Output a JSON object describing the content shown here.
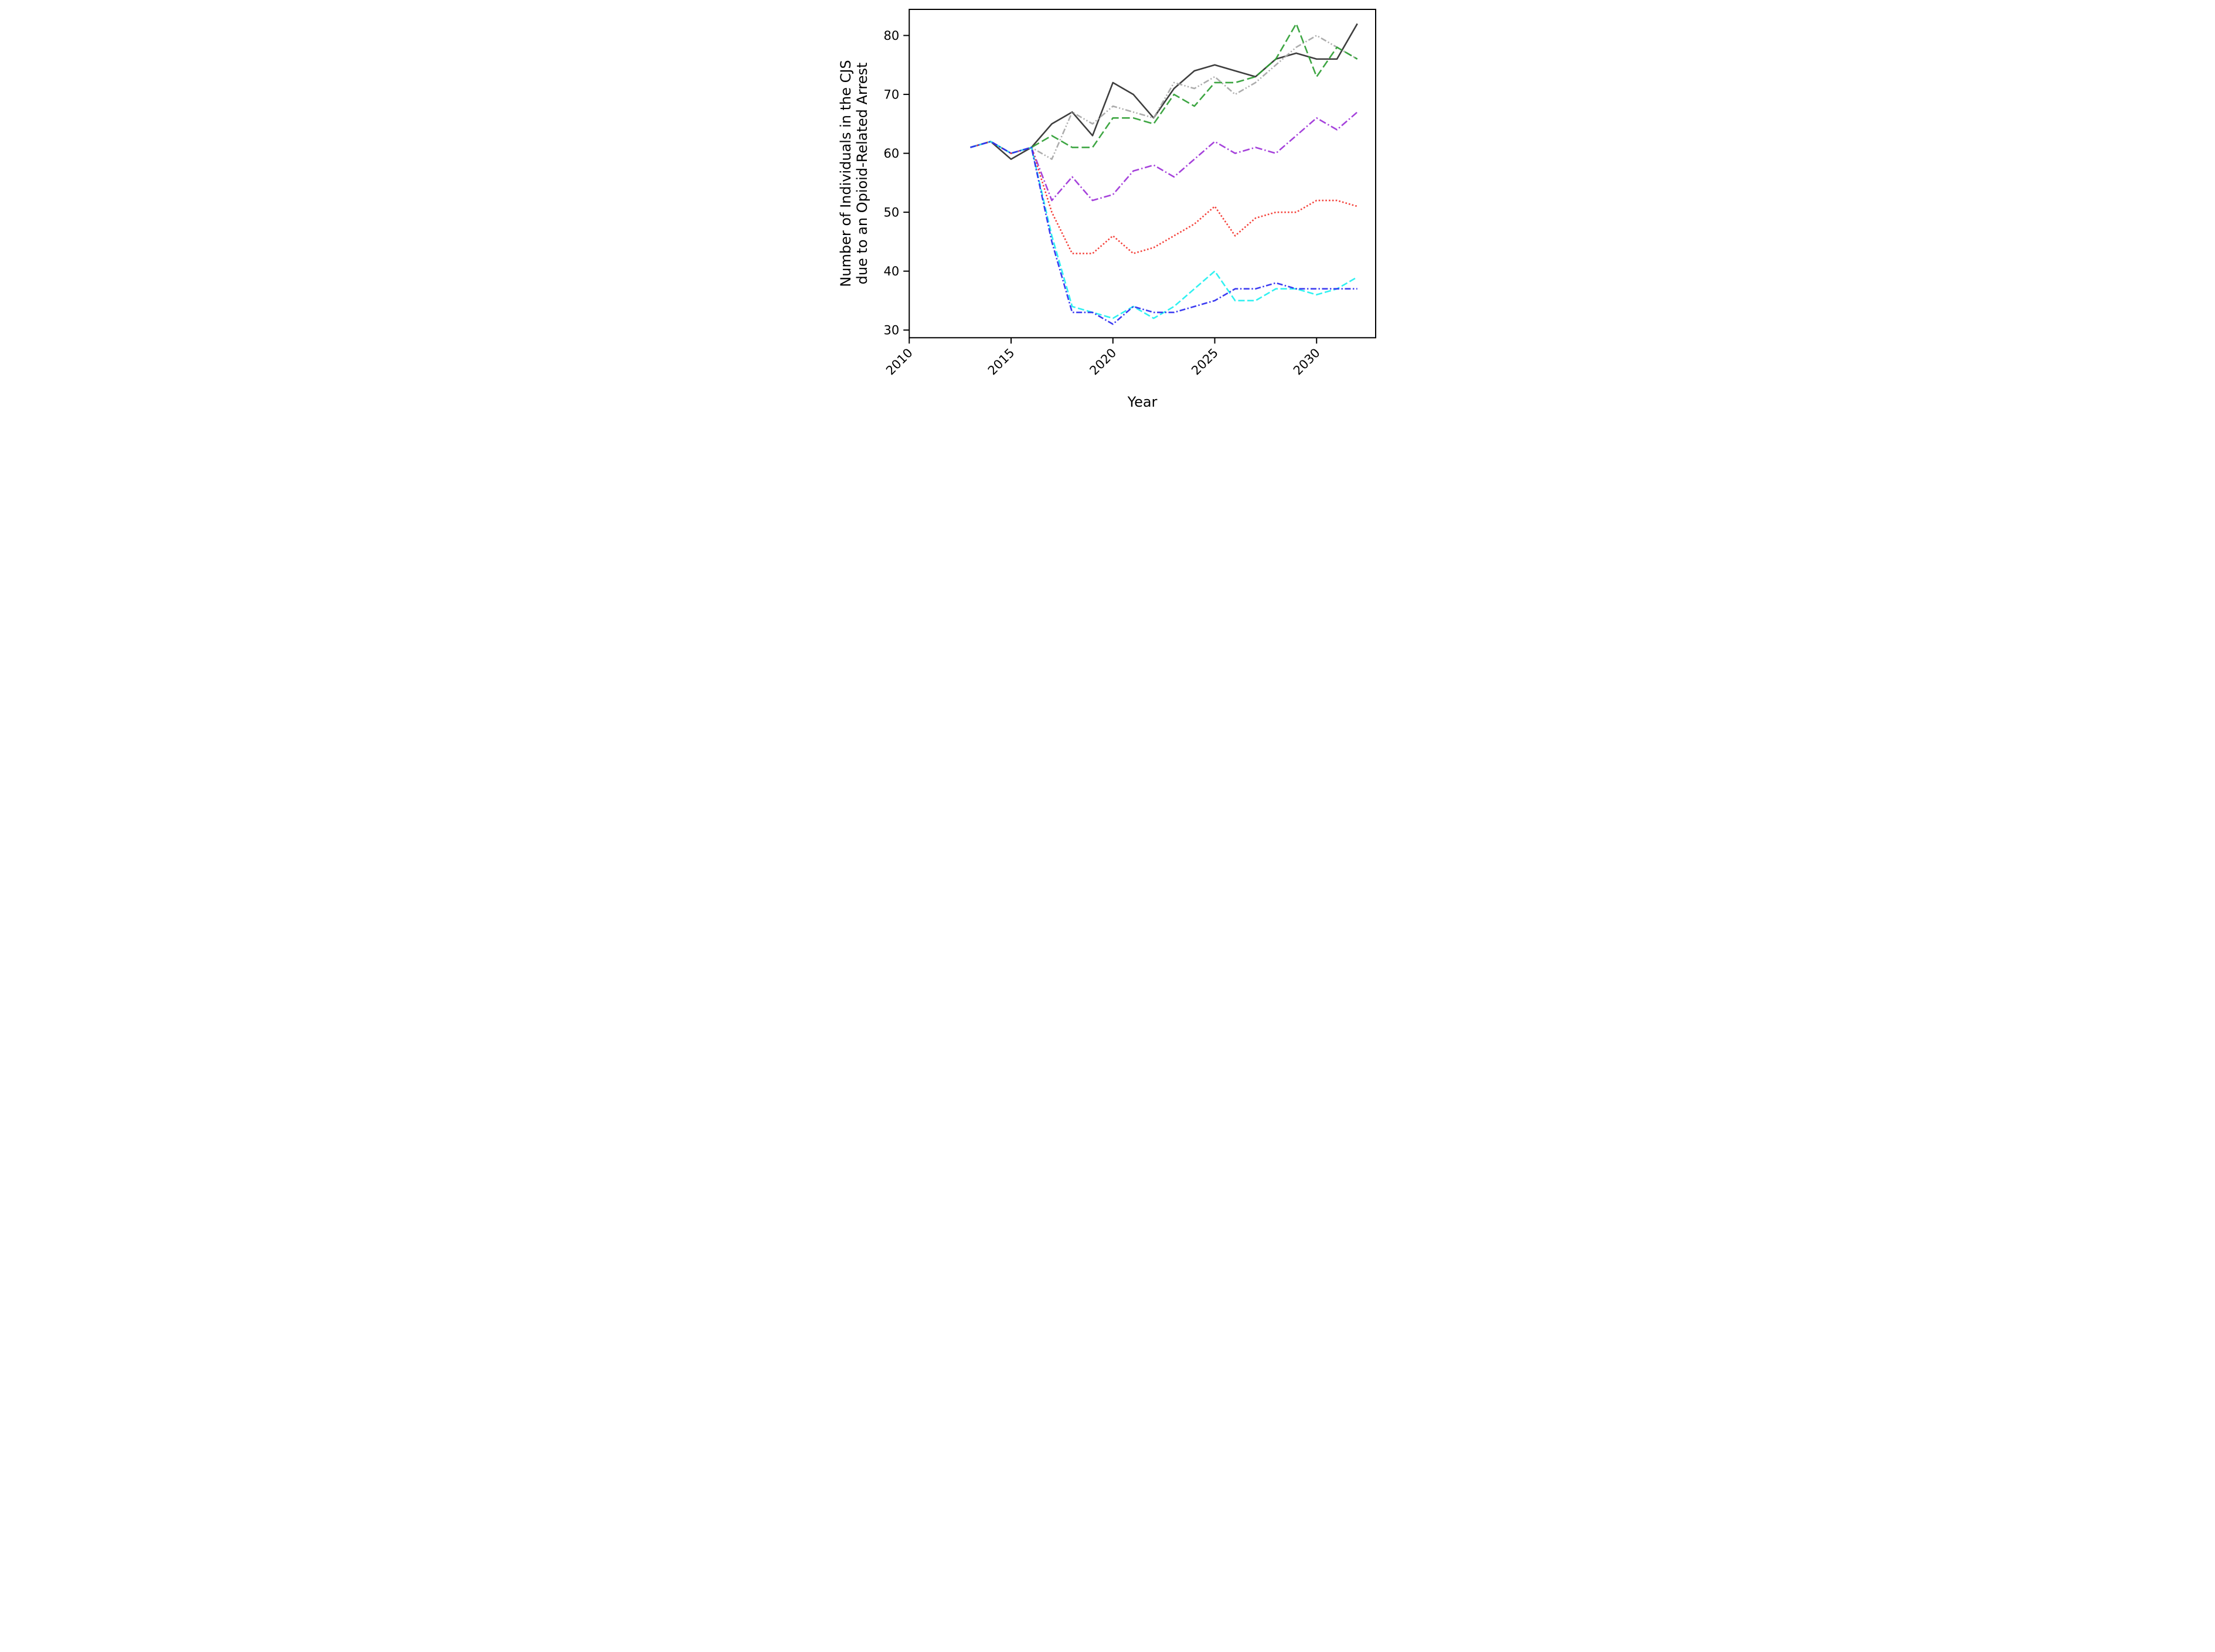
{
  "chart_data": {
    "type": "line",
    "title": "",
    "xlabel": "Year",
    "ylabel_line1": "Number of Individuals in the CJS",
    "ylabel_line2": "due to an Opioid-Related Arrest",
    "grid": false,
    "legend": "none",
    "xlim": [
      2010,
      2032.9
    ],
    "ylim": [
      28.7,
      84.43
    ],
    "xticks": [
      2010,
      2015,
      2020,
      2025,
      2030
    ],
    "yticks": [
      30,
      40,
      50,
      60,
      70,
      80
    ],
    "x": [
      2013,
      2014,
      2015,
      2016,
      2017,
      2018,
      2019,
      2020,
      2021,
      2022,
      2023,
      2024,
      2025,
      2026,
      2027,
      2028,
      2029,
      2030,
      2031,
      2032
    ],
    "series": [
      {
        "name": "black-solid",
        "color": "#2e2e2e",
        "dash": "",
        "values": [
          61,
          62,
          59,
          61,
          65,
          67,
          63,
          72,
          70,
          66,
          71,
          74,
          75,
          74,
          73,
          76,
          77,
          76,
          76,
          82
        ]
      },
      {
        "name": "gray-dash-dot-dot",
        "color": "#a6a6a6",
        "dash": "10 3.5 2.2 3.5 2.2 3.5",
        "values": [
          61,
          62,
          60,
          61,
          59,
          67,
          65,
          68,
          67,
          66,
          72,
          71,
          73,
          70,
          72,
          75,
          78,
          80,
          78,
          76
        ]
      },
      {
        "name": "green-dashed",
        "color": "#2e9e33",
        "dash": "13.5 5.5",
        "values": [
          61,
          62,
          60,
          61,
          63,
          61,
          61,
          66,
          66,
          65,
          70,
          68,
          72,
          72,
          73,
          76,
          82,
          73,
          78,
          76
        ]
      },
      {
        "name": "purple-dash-dot",
        "color": "#9d32d8",
        "dash": "12 4 2.4 4",
        "values": [
          61,
          62,
          60,
          61,
          52,
          56,
          52,
          53,
          57,
          58,
          56,
          59,
          62,
          60,
          61,
          60,
          63,
          66,
          64,
          67
        ]
      },
      {
        "name": "red-dotted",
        "color": "#f3322a",
        "dash": "2.6 3.2",
        "values": [
          61,
          62,
          60,
          61,
          50,
          43,
          43,
          46,
          43,
          44,
          46,
          48,
          51,
          46,
          49,
          50,
          50,
          52,
          52,
          51
        ]
      },
      {
        "name": "cyan-dashed",
        "color": "#1ff0f0",
        "dash": "11 4.5",
        "values": [
          61,
          62,
          60,
          61,
          46,
          34,
          33,
          32,
          34,
          32,
          34,
          37,
          40,
          35,
          35,
          37,
          37,
          36,
          37,
          39
        ]
      },
      {
        "name": "blue-dash-dot",
        "color": "#2b2bf0",
        "dash": "10 3.5 2.5 3.5",
        "values": [
          61,
          62,
          60,
          61,
          45,
          33,
          33,
          31,
          34,
          33,
          33,
          34,
          35,
          37,
          37,
          38,
          37,
          37,
          37,
          37
        ]
      }
    ]
  }
}
